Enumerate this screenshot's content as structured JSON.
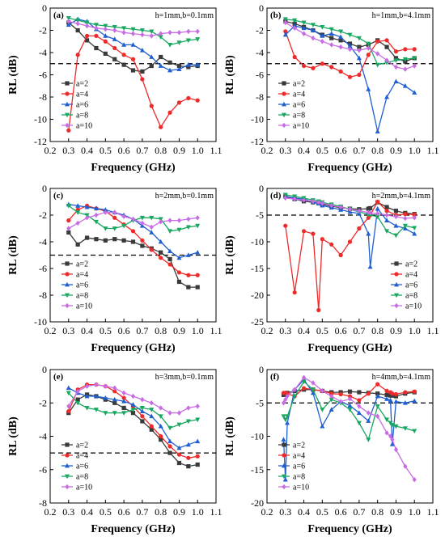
{
  "figure": {
    "x_title": "Frequency (GHz)",
    "y_title": "RL (dB)"
  },
  "colors": {
    "a=2": "#3a3a3a",
    "a=4": "#ee2a2a",
    "a=6": "#1f5fd0",
    "a=8": "#18a860",
    "a=10": "#c86ce6"
  },
  "markers": {
    "a=2": "square",
    "a=4": "circle",
    "a=6": "triangle-up",
    "a=8": "triangle-down",
    "a=10": "diamond"
  },
  "chart_data": [
    {
      "type": "line",
      "panel": "(a)",
      "annotation": "h=1mm,b=0.1mm",
      "xlim": [
        0.2,
        1.1
      ],
      "ylim": [
        -12,
        0
      ],
      "xticks": [
        0.2,
        0.3,
        0.4,
        0.5,
        0.6,
        0.7,
        0.8,
        0.9,
        1.0,
        1.1
      ],
      "yticks": [
        0,
        -2,
        -4,
        -6,
        -8,
        -10,
        -12
      ],
      "reference_line": -5,
      "grid": false,
      "legend_position": "bottom-left",
      "x": [
        0.3,
        0.35,
        0.4,
        0.45,
        0.5,
        0.55,
        0.6,
        0.65,
        0.7,
        0.75,
        0.8,
        0.85,
        0.9,
        0.95,
        1.0
      ],
      "series": [
        {
          "name": "a=2",
          "values": [
            -1.3,
            -2.0,
            -2.9,
            -3.6,
            -4.1,
            -4.6,
            -5.1,
            -5.6,
            -5.7,
            -5.2,
            -4.4,
            -4.9,
            -5.2,
            -5.3,
            -5.2
          ]
        },
        {
          "name": "a=4",
          "values": [
            -11.0,
            -4.2,
            -2.5,
            -2.5,
            -3.0,
            -3.6,
            -4.2,
            -4.6,
            -6.4,
            -8.8,
            -10.7,
            -9.4,
            -8.5,
            -8.1,
            -8.3
          ]
        },
        {
          "name": "a=6",
          "values": [
            -1.5,
            -1.0,
            -1.2,
            -1.9,
            -2.5,
            -2.8,
            -3.3,
            -3.3,
            -3.8,
            -4.4,
            -5.2,
            -5.6,
            -5.5,
            -5.1,
            -5.1
          ]
        },
        {
          "name": "a=8",
          "values": [
            -0.9,
            -1.1,
            -1.3,
            -1.5,
            -1.6,
            -1.7,
            -1.8,
            -1.9,
            -2.0,
            -2.1,
            -2.6,
            -3.3,
            -3.1,
            -2.9,
            -2.8
          ]
        },
        {
          "name": "a=10",
          "values": [
            -1.2,
            -1.4,
            -1.6,
            -1.8,
            -1.9,
            -2.0,
            -2.2,
            -2.3,
            -2.4,
            -2.5,
            -2.3,
            -2.2,
            -2.2,
            -2.1,
            -2.1
          ]
        }
      ]
    },
    {
      "type": "line",
      "panel": "(b)",
      "annotation": "h=1mm,b=4.1mm",
      "xlim": [
        0.2,
        1.1
      ],
      "ylim": [
        -12,
        0
      ],
      "xticks": [
        0.2,
        0.3,
        0.4,
        0.5,
        0.6,
        0.7,
        0.8,
        0.9,
        1.0,
        1.1
      ],
      "yticks": [
        0,
        -2,
        -4,
        -6,
        -8,
        -10,
        -12
      ],
      "reference_line": -5,
      "grid": false,
      "legend_position": "bottom-left",
      "x": [
        0.3,
        0.35,
        0.4,
        0.45,
        0.5,
        0.55,
        0.6,
        0.65,
        0.7,
        0.75,
        0.8,
        0.85,
        0.9,
        0.95,
        1.0
      ],
      "series": [
        {
          "name": "a=2",
          "values": [
            -1.2,
            -1.4,
            -1.7,
            -2.0,
            -2.4,
            -2.7,
            -2.9,
            -3.2,
            -3.5,
            -3.3,
            -2.9,
            -3.5,
            -4.5,
            -4.8,
            -4.5
          ]
        },
        {
          "name": "a=4",
          "values": [
            -2.1,
            -4.4,
            -5.2,
            -5.4,
            -5.0,
            -5.3,
            -5.7,
            -6.2,
            -6.0,
            -4.2,
            -3.0,
            -2.9,
            -3.9,
            -3.7,
            -3.7
          ]
        },
        {
          "name": "a=6",
          "values": [
            -2.4,
            -1.6,
            -1.8,
            -2.0,
            -2.5,
            -2.3,
            -2.6,
            -3.4,
            -4.5,
            -7.3,
            -11.1,
            -8.0,
            -6.6,
            -7.0,
            -7.6
          ]
        },
        {
          "name": "a=8",
          "values": [
            -1.0,
            -1.1,
            -1.3,
            -1.5,
            -1.7,
            -1.9,
            -2.1,
            -2.4,
            -2.7,
            -3.2,
            -5.1,
            -4.9,
            -4.7,
            -4.6,
            -4.5
          ]
        },
        {
          "name": "a=10",
          "values": [
            -1.3,
            -1.8,
            -2.3,
            -2.7,
            -3.0,
            -3.3,
            -3.5,
            -3.7,
            -3.8,
            -3.6,
            -4.1,
            -4.7,
            -5.3,
            -5.5,
            -5.2
          ]
        }
      ]
    },
    {
      "type": "line",
      "panel": "(c)",
      "annotation": "h=2mm,b=0.1mm",
      "xlim": [
        0.2,
        1.1
      ],
      "ylim": [
        -10,
        0
      ],
      "xticks": [
        0.2,
        0.3,
        0.4,
        0.5,
        0.6,
        0.7,
        0.8,
        0.9,
        1.0,
        1.1
      ],
      "yticks": [
        0,
        -2,
        -4,
        -6,
        -8,
        -10
      ],
      "reference_line": -5,
      "grid": false,
      "legend_position": "bottom-left",
      "x": [
        0.3,
        0.35,
        0.4,
        0.45,
        0.5,
        0.55,
        0.6,
        0.65,
        0.7,
        0.75,
        0.8,
        0.85,
        0.9,
        0.95,
        1.0
      ],
      "series": [
        {
          "name": "a=2",
          "values": [
            -3.3,
            -4.2,
            -3.7,
            -3.8,
            -3.9,
            -3.8,
            -3.9,
            -4.0,
            -4.3,
            -4.5,
            -4.8,
            -5.3,
            -7.0,
            -7.4,
            -7.4
          ]
        },
        {
          "name": "a=4",
          "values": [
            -2.4,
            -1.6,
            -1.3,
            -1.5,
            -1.7,
            -2.2,
            -2.7,
            -3.2,
            -3.9,
            -4.6,
            -5.2,
            -5.7,
            -6.3,
            -6.5,
            -6.5
          ]
        },
        {
          "name": "a=6",
          "values": [
            -1.2,
            -1.3,
            -1.4,
            -1.5,
            -1.6,
            -1.8,
            -2.0,
            -2.3,
            -2.8,
            -3.3,
            -4.0,
            -4.7,
            -5.2,
            -5.0,
            -4.8
          ]
        },
        {
          "name": "a=8",
          "values": [
            -1.3,
            -1.8,
            -2.0,
            -2.5,
            -3.0,
            -3.0,
            -2.8,
            -2.4,
            -2.2,
            -2.2,
            -2.3,
            -3.2,
            -3.1,
            -2.9,
            -2.8
          ]
        },
        {
          "name": "a=10",
          "values": [
            -3.0,
            -2.6,
            -2.2,
            -2.0,
            -1.8,
            -1.8,
            -2.1,
            -2.3,
            -2.6,
            -2.9,
            -2.5,
            -2.4,
            -2.4,
            -2.3,
            -2.2
          ]
        }
      ]
    },
    {
      "type": "line",
      "panel": "(d)",
      "annotation": "h=2mm,b=4.1mm",
      "xlim": [
        0.2,
        1.1
      ],
      "ylim": [
        -25,
        0
      ],
      "xticks": [
        0.2,
        0.3,
        0.4,
        0.5,
        0.6,
        0.7,
        0.8,
        0.9,
        1.0,
        1.1
      ],
      "yticks": [
        0,
        -5,
        -10,
        -15,
        -20,
        -25
      ],
      "reference_line": -5,
      "grid": false,
      "legend_position": "bottom-right",
      "x": [
        0.3,
        0.35,
        0.4,
        0.45,
        0.48,
        0.5,
        0.55,
        0.6,
        0.65,
        0.7,
        0.75,
        0.76,
        0.8,
        0.85,
        0.9,
        0.95,
        1.0
      ],
      "series": [
        {
          "name": "a=2",
          "values": [
            -1.5,
            -2.0,
            -2.4,
            -2.6,
            -2.8,
            -3.0,
            -3.3,
            -3.6,
            -3.8,
            -3.9,
            -3.8,
            -3.7,
            -2.6,
            -3.5,
            -4.2,
            -4.6,
            -4.8
          ]
        },
        {
          "name": "a=4",
          "values": [
            -7.0,
            -19.5,
            -8.0,
            -8.5,
            -22.8,
            -9.5,
            -10.5,
            -12.5,
            -10.0,
            -7.5,
            -5.5,
            -5.0,
            -2.5,
            -4.2,
            -5.0,
            -4.8,
            -4.9
          ]
        },
        {
          "name": "a=6",
          "values": [
            -1.5,
            -1.8,
            -2.0,
            -2.5,
            -2.8,
            -3.2,
            -3.6,
            -4.0,
            -4.4,
            -4.7,
            -8.5,
            -14.7,
            -3.8,
            -6.0,
            -7.0,
            -7.5,
            -8.5
          ]
        },
        {
          "name": "a=8",
          "values": [
            -1.2,
            -1.5,
            -1.8,
            -2.2,
            -2.4,
            -2.6,
            -3.0,
            -3.4,
            -3.9,
            -4.4,
            -4.9,
            -5.0,
            -5.3,
            -8.0,
            -8.8,
            -7.0,
            -7.4
          ]
        },
        {
          "name": "a=10",
          "values": [
            -1.8,
            -2.0,
            -2.2,
            -2.4,
            -2.6,
            -2.8,
            -3.2,
            -3.5,
            -3.9,
            -4.2,
            -4.5,
            -4.6,
            -4.7,
            -5.0,
            -5.3,
            -5.6,
            -5.5
          ]
        }
      ]
    },
    {
      "type": "line",
      "panel": "(e)",
      "annotation": "h=3mm,b=0.1mm",
      "xlim": [
        0.2,
        1.1
      ],
      "ylim": [
        -8,
        0
      ],
      "xticks": [
        0.2,
        0.3,
        0.4,
        0.5,
        0.6,
        0.7,
        0.8,
        0.9,
        1.0,
        1.1
      ],
      "yticks": [
        0,
        -2,
        -4,
        -6,
        -8
      ],
      "reference_line": -5,
      "grid": false,
      "legend_position": "bottom-left",
      "x": [
        0.3,
        0.35,
        0.4,
        0.45,
        0.5,
        0.55,
        0.6,
        0.65,
        0.7,
        0.75,
        0.8,
        0.85,
        0.9,
        0.95,
        1.0
      ],
      "series": [
        {
          "name": "a=2",
          "values": [
            -2.6,
            -1.8,
            -1.5,
            -1.6,
            -1.8,
            -2.0,
            -2.3,
            -2.6,
            -3.1,
            -3.6,
            -4.2,
            -5.0,
            -5.6,
            -5.8,
            -5.7
          ]
        },
        {
          "name": "a=4",
          "values": [
            -2.5,
            -1.2,
            -0.9,
            -0.9,
            -1.0,
            -1.3,
            -1.7,
            -2.2,
            -2.8,
            -3.4,
            -4.0,
            -4.6,
            -5.1,
            -5.3,
            -5.2
          ]
        },
        {
          "name": "a=6",
          "values": [
            -1.1,
            -1.4,
            -1.6,
            -1.6,
            -1.7,
            -1.8,
            -1.9,
            -2.1,
            -2.5,
            -2.8,
            -3.4,
            -4.3,
            -4.7,
            -4.5,
            -4.3
          ]
        },
        {
          "name": "a=8",
          "values": [
            -1.4,
            -2.0,
            -2.3,
            -2.4,
            -2.6,
            -2.6,
            -2.6,
            -2.4,
            -2.3,
            -2.4,
            -2.8,
            -3.5,
            -3.3,
            -3.1,
            -3.0
          ]
        },
        {
          "name": "a=10",
          "values": [
            -2.2,
            -1.3,
            -1.0,
            -0.9,
            -1.0,
            -1.1,
            -1.4,
            -1.6,
            -1.8,
            -2.0,
            -2.3,
            -2.6,
            -2.6,
            -2.3,
            -2.2
          ]
        }
      ]
    },
    {
      "type": "line",
      "panel": "(f)",
      "annotation": "h=4mm,b=4.1mm",
      "xlim": [
        0.2,
        1.1
      ],
      "ylim": [
        -20,
        0
      ],
      "xticks": [
        0.2,
        0.3,
        0.4,
        0.5,
        0.6,
        0.7,
        0.8,
        0.9,
        1.0,
        1.1
      ],
      "yticks": [
        0,
        -5,
        -10,
        -15,
        -20
      ],
      "reference_line": -5,
      "grid": false,
      "legend_position": "bottom-left",
      "x": [
        0.29,
        0.3,
        0.31,
        0.35,
        0.4,
        0.45,
        0.5,
        0.55,
        0.6,
        0.65,
        0.7,
        0.75,
        0.8,
        0.85,
        0.87,
        0.88,
        0.9,
        0.95,
        1.0
      ],
      "series": [
        {
          "name": "a=2",
          "values": [
            -3.8,
            -3.7,
            -3.5,
            -3.2,
            -3.0,
            -3.0,
            -3.2,
            -3.4,
            -3.4,
            -3.3,
            -3.4,
            -3.5,
            -3.6,
            -3.8,
            -3.9,
            -3.9,
            -4.0,
            -3.6,
            -3.4
          ]
        },
        {
          "name": "a=4",
          "values": [
            -3.5,
            -3.5,
            -3.6,
            -4.0,
            -2.8,
            -3.0,
            -3.2,
            -3.6,
            -3.7,
            -4.0,
            -4.6,
            -3.6,
            -2.2,
            -3.2,
            -3.4,
            -3.6,
            -3.7,
            -3.4,
            -3.3
          ]
        },
        {
          "name": "a=6",
          "values": [
            -10.5,
            -16.5,
            -8.0,
            -3.0,
            -1.5,
            -3.5,
            -8.5,
            -6.0,
            -4.8,
            -5.4,
            -6.5,
            -7.7,
            -4.0,
            -4.4,
            -4.6,
            -11.2,
            -4.8,
            -5.0,
            -4.7
          ]
        },
        {
          "name": "a=8",
          "values": [
            -7.0,
            -7.5,
            -7.0,
            -4.0,
            -1.8,
            -3.0,
            -6.0,
            -4.5,
            -5.0,
            -6.0,
            -8.0,
            -10.5,
            -5.5,
            -7.5,
            -8.0,
            -8.3,
            -8.5,
            -8.8,
            -9.2
          ]
        },
        {
          "name": "a=10",
          "values": [
            -5.0,
            -4.5,
            -4.0,
            -3.0,
            -1.2,
            -2.0,
            -3.2,
            -4.0,
            -4.8,
            -4.4,
            -5.5,
            -6.5,
            -7.0,
            -9.5,
            -10.0,
            -10.5,
            -12.0,
            -14.5,
            -16.5
          ]
        }
      ]
    }
  ]
}
